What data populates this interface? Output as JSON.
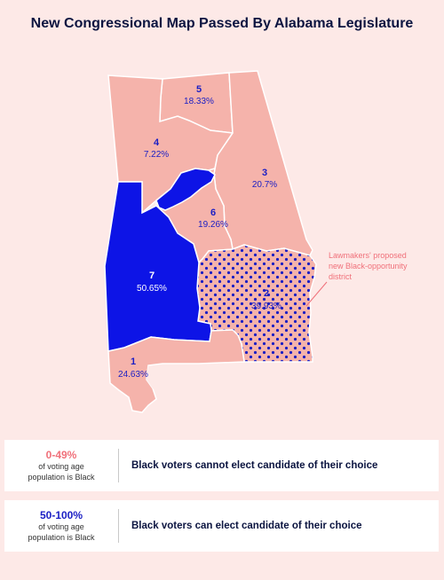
{
  "title": "New Congressional Map Passed By Alabama Legislature",
  "colors": {
    "background": "#fde9e7",
    "low_black_district": "#f5b3ab",
    "high_black_district": "#0d14e6",
    "opportunity_dots": "#1a1ec4",
    "annotation": "#f0707a",
    "district_border": "#ffffff"
  },
  "districts": [
    {
      "number": "1",
      "percent": "24.63%",
      "category": "low"
    },
    {
      "number": "2",
      "percent": "39.93%",
      "category": "low",
      "pattern": "dotted"
    },
    {
      "number": "3",
      "percent": "20.7%",
      "category": "low"
    },
    {
      "number": "4",
      "percent": "7.22%",
      "category": "low"
    },
    {
      "number": "5",
      "percent": "18.33%",
      "category": "low"
    },
    {
      "number": "6",
      "percent": "19.26%",
      "category": "low"
    },
    {
      "number": "7",
      "percent": "50.65%",
      "category": "high"
    }
  ],
  "annotation": {
    "line1": "Lawmakers' proposed",
    "line2": "new Black-opportunity",
    "line3": "district"
  },
  "legend": [
    {
      "range": "0-49%",
      "sub1": "of voting age",
      "sub2": "population is Black",
      "text": "Black voters cannot elect candidate of their choice",
      "color": "#f0707a"
    },
    {
      "range": "50-100%",
      "sub1": "of voting age",
      "sub2": "population is Black",
      "text": "Black voters can elect candidate of their choice",
      "color": "#1a1ec4"
    }
  ]
}
